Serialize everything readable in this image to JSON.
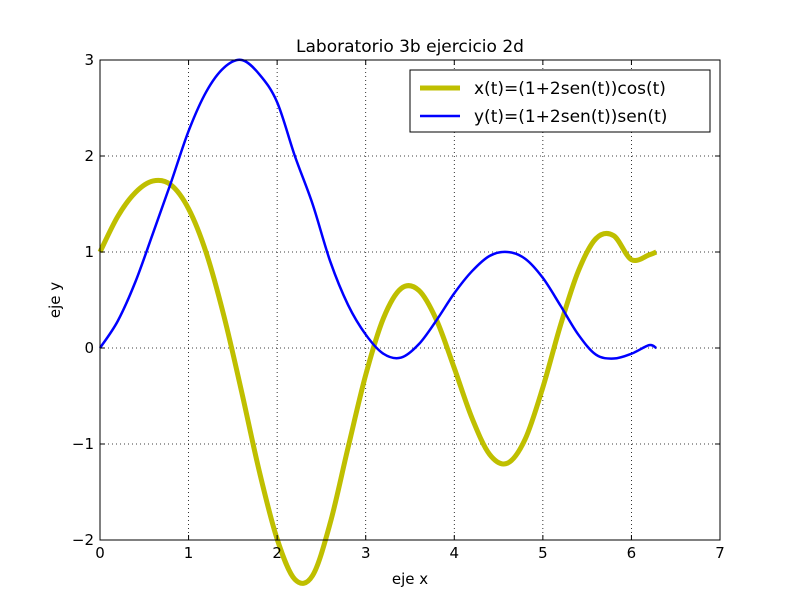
{
  "chart_data": {
    "type": "line",
    "title": "Laboratorio 3b ejercicio 2d",
    "xlabel": "eje x",
    "ylabel": "eje y",
    "xlim": [
      0,
      7
    ],
    "ylim": [
      -2,
      3
    ],
    "xticks": [
      "0",
      "1",
      "2",
      "3",
      "4",
      "5",
      "6",
      "7"
    ],
    "yticks": [
      "−2",
      "−1",
      "0",
      "1",
      "2",
      "3"
    ],
    "grid": true,
    "legend_position": "top-right",
    "series": [
      {
        "name": "x(t)=(1+2sen(t))cos(t)",
        "color": "#bfbf00",
        "x": [
          0,
          0.2,
          0.4,
          0.6,
          0.8,
          1.0,
          1.2,
          1.4,
          1.6,
          1.8,
          2.0,
          2.2,
          2.4,
          2.6,
          2.8,
          3.0,
          3.2,
          3.4,
          3.6,
          3.8,
          4.0,
          4.2,
          4.4,
          4.6,
          4.8,
          5.0,
          5.2,
          5.4,
          5.6,
          5.8,
          6.0,
          6.2,
          6.28
        ],
        "y": [
          1.0,
          1.37,
          1.62,
          1.74,
          1.7,
          1.45,
          0.99,
          0.33,
          -0.46,
          -1.29,
          -1.99,
          -2.41,
          -2.37,
          -1.82,
          -1.04,
          -0.28,
          0.31,
          0.62,
          0.6,
          0.29,
          -0.21,
          -0.73,
          -1.11,
          -1.2,
          -0.95,
          -0.41,
          0.24,
          0.8,
          1.14,
          1.17,
          0.92,
          0.97,
          1.0
        ]
      },
      {
        "name": "y(t)=(1+2sen(t))sen(t)",
        "color": "#0000ff",
        "x": [
          0,
          0.2,
          0.4,
          0.6,
          0.8,
          1.0,
          1.2,
          1.4,
          1.6,
          1.8,
          2.0,
          2.2,
          2.4,
          2.6,
          2.8,
          3.0,
          3.2,
          3.4,
          3.6,
          3.8,
          4.0,
          4.2,
          4.4,
          4.6,
          4.8,
          5.0,
          5.2,
          5.4,
          5.6,
          5.8,
          6.0,
          6.2,
          6.28
        ],
        "y": [
          0.0,
          0.28,
          0.69,
          1.2,
          1.72,
          2.26,
          2.67,
          2.92,
          3.0,
          2.85,
          2.56,
          2.0,
          1.5,
          0.9,
          0.45,
          0.14,
          -0.06,
          -0.1,
          0.04,
          0.29,
          0.57,
          0.8,
          0.96,
          1.0,
          0.93,
          0.73,
          0.44,
          0.14,
          -0.07,
          -0.11,
          -0.06,
          0.03,
          0.0
        ]
      }
    ]
  }
}
